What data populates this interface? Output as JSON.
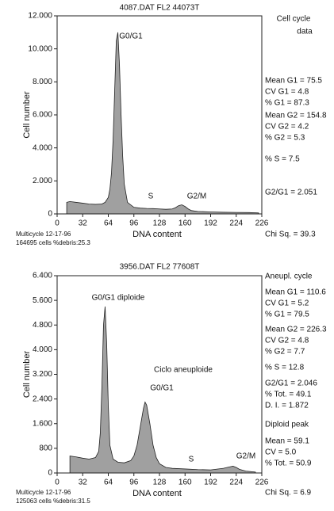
{
  "chart_data": [
    {
      "type": "area",
      "title": "4087.DAT FL2 44073T",
      "x_label": "DNA content",
      "y_label": "Cell number",
      "color": "#808080",
      "x": [
        12,
        16,
        24,
        32,
        40,
        48,
        56,
        60,
        64,
        66,
        68,
        70,
        72,
        74,
        76,
        78,
        80,
        82,
        84,
        88,
        96,
        104,
        112,
        120,
        128,
        136,
        144,
        148,
        152,
        156,
        160,
        164,
        168,
        176,
        192,
        208,
        224,
        240,
        252
      ],
      "values": [
        700,
        750,
        700,
        650,
        600,
        580,
        600,
        700,
        1000,
        1500,
        2500,
        4500,
        7500,
        10500,
        11000,
        9000,
        6000,
        3500,
        1800,
        700,
        400,
        350,
        330,
        320,
        300,
        280,
        300,
        380,
        500,
        550,
        450,
        300,
        200,
        150,
        120,
        100,
        90,
        80,
        60
      ],
      "xlim": [
        0,
        256
      ],
      "ylim": [
        0,
        12000
      ],
      "xticks": [
        0,
        32,
        64,
        96,
        128,
        160,
        192,
        224,
        {
          "value": 256,
          "label": "226"
        }
      ],
      "yticks": [
        0,
        {
          "value": 2000,
          "label": "2.000"
        },
        {
          "value": 4000,
          "label": "4.000"
        },
        {
          "value": 6000,
          "label": "6.000"
        },
        {
          "value": 8000,
          "label": "8.000"
        },
        {
          "value": 10000,
          "label": "10.000"
        },
        {
          "value": 12000,
          "label": "12.000"
        }
      ],
      "annotations": [
        "G0/G1",
        "S",
        "G2/M"
      ],
      "side_notes": [
        "Cell cycle",
        "data",
        "Mean G1 = 75.5",
        "CV G1 = 4.8",
        "% G1 = 87.3",
        "Mean G2 = 154.8",
        "CV G2 = 4.2",
        "% G2 = 5.3",
        "% S = 7.5",
        "G2/G1 = 2.051"
      ],
      "footer": [
        "Multicycle 12-17-96",
        "164695 cells %debris:25.3"
      ],
      "chi_sq": "Chi Sq. = 39.3"
    },
    {
      "type": "area",
      "title": "3956.DAT FL2 77608T",
      "x_label": "DNA content",
      "y_label": "Cell number",
      "color": "#808080",
      "x": [
        16,
        24,
        32,
        40,
        48,
        52,
        54,
        56,
        58,
        60,
        62,
        64,
        66,
        70,
        76,
        84,
        92,
        96,
        100,
        104,
        108,
        110,
        112,
        116,
        120,
        124,
        128,
        136,
        144,
        160,
        176,
        192,
        208,
        216,
        220,
        224,
        228,
        236,
        248
      ],
      "values": [
        550,
        520,
        480,
        450,
        500,
        700,
        1300,
        2800,
        4800,
        5400,
        4200,
        2200,
        900,
        450,
        350,
        330,
        400,
        550,
        900,
        1500,
        2100,
        2300,
        2200,
        1600,
        900,
        500,
        300,
        180,
        150,
        130,
        110,
        100,
        150,
        200,
        220,
        180,
        120,
        60,
        30
      ],
      "xlim": [
        0,
        256
      ],
      "ylim": [
        0,
        6400
      ],
      "xticks": [
        0,
        32,
        64,
        96,
        128,
        160,
        192,
        224,
        {
          "value": 256,
          "label": "226"
        }
      ],
      "yticks": [
        0,
        800,
        {
          "value": 1600,
          "label": "1.600"
        },
        {
          "value": 2400,
          "label": "2.400"
        },
        {
          "value": 3200,
          "label": "3.200"
        },
        {
          "value": 4000,
          "label": "4.000"
        },
        {
          "value": 4800,
          "label": "4.800"
        },
        {
          "value": 5600,
          "label": "5.600"
        },
        {
          "value": 6400,
          "label": "6.400"
        }
      ],
      "annotations": [
        "G0/G1 diploide",
        "Ciclo aneuploide",
        "G0/G1",
        "S",
        "G2/M"
      ],
      "side_notes": [
        "Aneupl. cycle",
        "Mean G1 = 110.6",
        "CV G1 = 5.2",
        "% G1 = 79.5",
        "Mean G2 = 226.3",
        "CV G2 = 4.8",
        "% G2 = 7.7",
        "% S = 12.8",
        "G2/G1 = 2.046",
        "% Tot. = 49.1",
        "D. I. = 1.872",
        "Diploid peak",
        "Mean = 59.1",
        "CV = 5.0",
        "% Tot. = 50.9"
      ],
      "footer": [
        "Multicycle 12-17-96",
        "125063 cells %debris:31.5"
      ],
      "chi_sq": "Chi Sq. = 6.9"
    }
  ]
}
